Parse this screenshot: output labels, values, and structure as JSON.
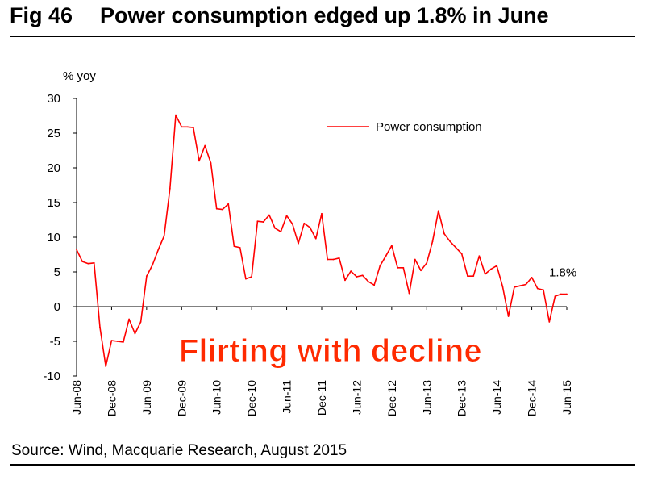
{
  "figure": {
    "number": "Fig 46",
    "title": "Power consumption edged up 1.8% in June",
    "source": "Source: Wind, Macquarie Research, August 2015"
  },
  "colors": {
    "series": "#ff0000",
    "overlay": "#ff2a00",
    "axis": "#000000"
  },
  "chart_data": {
    "type": "line",
    "title": "Power consumption edged up 1.8% in June",
    "ylabel": "% yoy",
    "xlabel": "",
    "ylim": [
      -10,
      30
    ],
    "yticks": [
      -10,
      -5,
      0,
      5,
      10,
      15,
      20,
      25,
      30
    ],
    "grid": false,
    "legend_position": "top-right",
    "x_tick_labels": [
      "Jun-08",
      "Dec-08",
      "Jun-09",
      "Dec-09",
      "Jun-10",
      "Dec-10",
      "Jun-11",
      "Dec-11",
      "Jun-12",
      "Dec-12",
      "Jun-13",
      "Dec-13",
      "Jun-14",
      "Dec-14",
      "Jun-15"
    ],
    "x_start": "Jun-08",
    "x_end": "Jun-15",
    "series": [
      {
        "name": "Power consumption",
        "values": [
          8.2,
          6.5,
          6.2,
          6.3,
          -3.0,
          -8.6,
          -4.9,
          -5.0,
          -5.1,
          -1.8,
          -3.9,
          -2.2,
          4.4,
          6.0,
          8.2,
          10.2,
          17.0,
          27.6,
          25.9,
          25.9,
          25.8,
          21.0,
          23.2,
          20.7,
          14.1,
          14.0,
          14.8,
          8.7,
          8.5,
          4.0,
          4.3,
          12.3,
          12.2,
          13.2,
          11.3,
          10.8,
          13.1,
          11.9,
          9.1,
          12.0,
          11.4,
          9.8,
          13.4,
          6.8,
          6.8,
          7.0,
          3.8,
          5.1,
          4.3,
          4.5,
          3.6,
          3.1,
          5.9,
          7.3,
          8.8,
          5.6,
          5.6,
          1.9,
          6.8,
          5.2,
          6.3,
          9.4,
          13.8,
          10.5,
          9.4,
          8.5,
          7.6,
          4.4,
          4.4,
          7.3,
          4.7,
          5.4,
          5.9,
          2.9,
          -1.4,
          2.8,
          3.0,
          3.2,
          4.2,
          2.6,
          2.4,
          -2.2,
          1.5,
          1.8,
          1.8
        ]
      }
    ],
    "annotations": [
      {
        "text": "1.8%",
        "at_index": 84
      }
    ],
    "overlay_text": "Flirting with decline"
  }
}
